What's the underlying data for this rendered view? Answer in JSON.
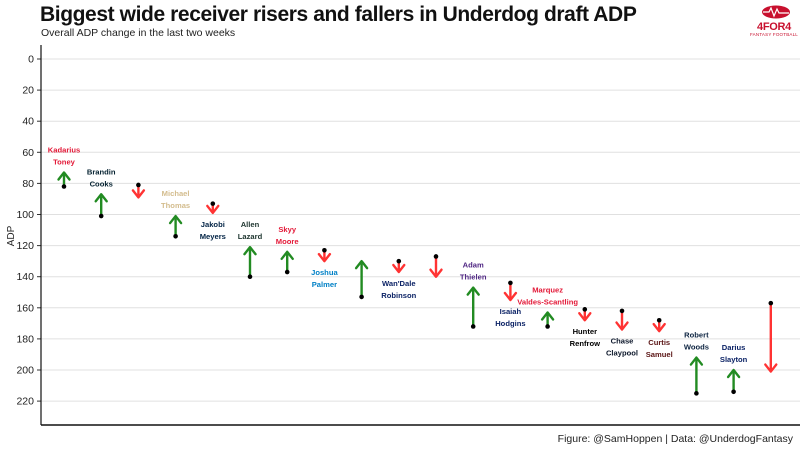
{
  "header": {
    "title": "Biggest wide receiver risers and fallers in Underdog draft ADP",
    "subtitle": "Overall ADP change in the last two weeks"
  },
  "footer": {
    "caption": "Figure: @SamHoppen | Data: @UnderdogFantasy"
  },
  "logo": {
    "name": "4FOR4",
    "tagline": "FANTASY FOOTBALL",
    "color": "#c8102e"
  },
  "colors": {
    "riser": "#228b22",
    "faller": "#ff3333",
    "point": "#000000",
    "grid": "#e0e0e0"
  },
  "chart_data": {
    "type": "arrow",
    "title": "Biggest wide receiver risers and fallers in Underdog draft ADP",
    "subtitle": "Overall ADP change in the last two weeks",
    "xlabel": "",
    "ylabel": "ADP",
    "y_reversed": true,
    "ylim": [
      0,
      238
    ],
    "yticks": [
      0,
      20,
      40,
      60,
      80,
      100,
      120,
      140,
      160,
      180,
      200,
      220
    ],
    "grid": true,
    "players": [
      {
        "name": "Kadarius Toney",
        "label": [
          "Kadarius",
          "Toney"
        ],
        "from": 82,
        "to": 73,
        "label_color": "#e31837"
      },
      {
        "name": "Brandin Cooks",
        "label": [
          "Brandin",
          "Cooks"
        ],
        "from": 101,
        "to": 87,
        "label_color": "#03202f"
      },
      {
        "name": "",
        "label": [],
        "from": 81,
        "to": 89,
        "label_color": "#000000"
      },
      {
        "name": "Michael Thomas",
        "label": [
          "Michael",
          "Thomas"
        ],
        "from": 114,
        "to": 101,
        "label_color": "#d3bc8d"
      },
      {
        "name": "Jakobi Meyers",
        "label": [
          "Jakobi",
          "Meyers"
        ],
        "from": 93,
        "to": 99,
        "label_color": "#002244"
      },
      {
        "name": "Allen Lazard",
        "label": [
          "Allen",
          "Lazard"
        ],
        "from": 140,
        "to": 121,
        "label_color": "#203731"
      },
      {
        "name": "Skyy Moore",
        "label": [
          "Skyy",
          "Moore"
        ],
        "from": 137,
        "to": 124,
        "label_color": "#e31837"
      },
      {
        "name": "Joshua Palmer",
        "label": [
          "Joshua",
          "Palmer"
        ],
        "from": 123,
        "to": 130,
        "label_color": "#0080c6"
      },
      {
        "name": "",
        "label": [],
        "from": 153,
        "to": 130,
        "label_color": "#000000"
      },
      {
        "name": "Wan'Dale Robinson",
        "label": [
          "Wan'Dale",
          "Robinson"
        ],
        "from": 130,
        "to": 137,
        "label_color": "#0b2265"
      },
      {
        "name": "",
        "label": [],
        "from": 127,
        "to": 140,
        "label_color": "#000000"
      },
      {
        "name": "Adam Thielen",
        "label": [
          "Adam",
          "Thielen"
        ],
        "from": 172,
        "to": 147,
        "label_color": "#4f2683"
      },
      {
        "name": "Isaiah Hodgins",
        "label": [
          "Isaiah",
          "Hodgins"
        ],
        "from": 144,
        "to": 155,
        "label_color": "#0b2265"
      },
      {
        "name": "Marquez Valdes-Scantling",
        "label": [
          "Marquez",
          "Valdes-Scantling"
        ],
        "from": 172,
        "to": 163,
        "label_color": "#e31837"
      },
      {
        "name": "Hunter Renfrow",
        "label": [
          "Hunter",
          "Renfrow"
        ],
        "from": 161,
        "to": 168,
        "label_color": "#000000"
      },
      {
        "name": "Chase Claypool",
        "label": [
          "Chase",
          "Claypool"
        ],
        "from": 162,
        "to": 174,
        "label_color": "#0b162a"
      },
      {
        "name": "Curtis Samuel",
        "label": [
          "Curtis",
          "Samuel"
        ],
        "from": 168,
        "to": 175,
        "label_color": "#5a1414"
      },
      {
        "name": "Robert Woods",
        "label": [
          "Robert",
          "Woods"
        ],
        "from": 215,
        "to": 192,
        "label_color": "#0c2340"
      },
      {
        "name": "Darius Slayton",
        "label": [
          "Darius",
          "Slayton"
        ],
        "from": 214,
        "to": 200,
        "label_color": "#0b2265"
      },
      {
        "name": "",
        "label": [],
        "from": 157,
        "to": 201,
        "label_color": "#000000"
      }
    ]
  }
}
